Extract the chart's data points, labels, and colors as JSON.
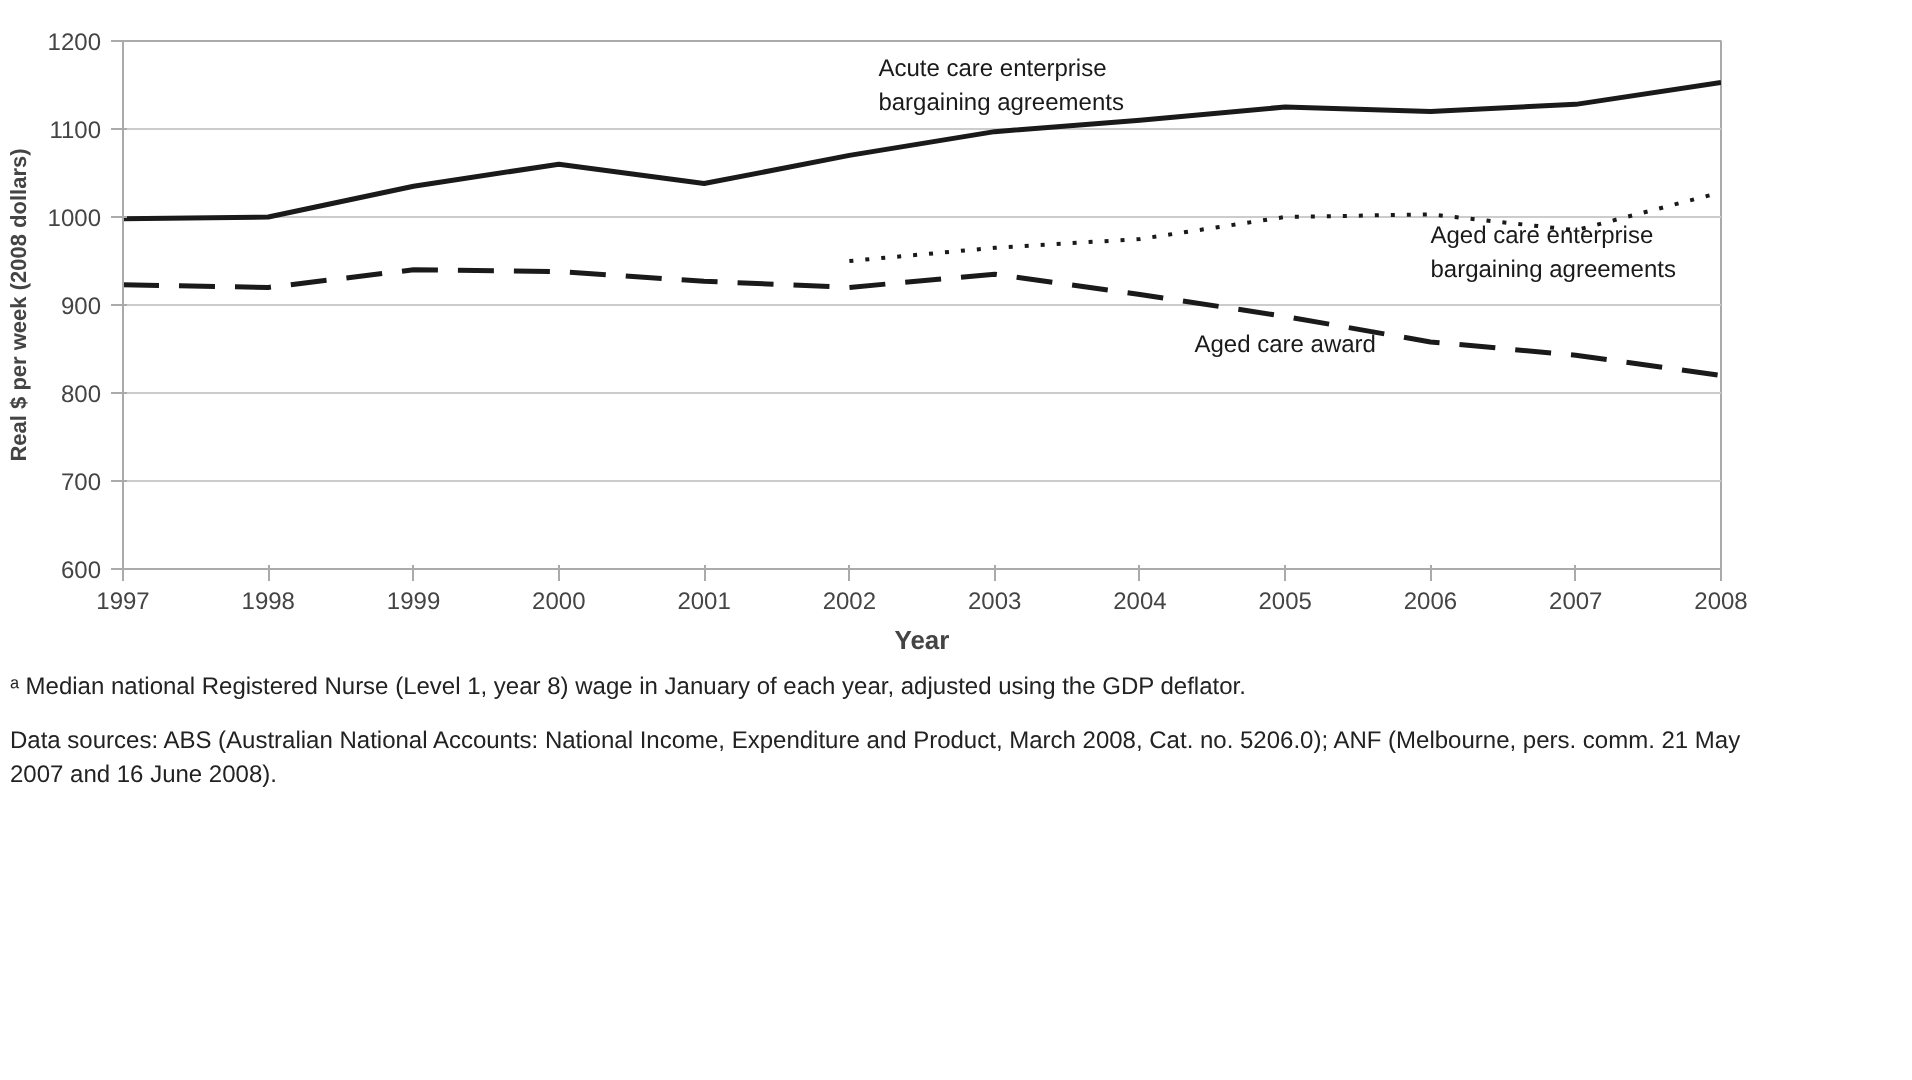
{
  "chart_data": {
    "type": "line",
    "xlabel": "Year",
    "ylabel": "Real $ per week (2008 dollars)",
    "x": [
      1997,
      1998,
      1999,
      2000,
      2001,
      2002,
      2003,
      2004,
      2005,
      2006,
      2007,
      2008
    ],
    "series": [
      {
        "name": "Acute care enterprise bargaining agreements",
        "color": "#1a1a1a",
        "line_style": "solid",
        "values": [
          998,
          1000,
          1035,
          1060,
          1038,
          1070,
          1097,
          1110,
          1125,
          1120,
          1128,
          1153
        ]
      },
      {
        "name": "Aged care enterprise bargaining agreements",
        "color": "#1a1a1a",
        "line_style": "dotted",
        "values": [
          null,
          null,
          null,
          null,
          null,
          950,
          965,
          975,
          1000,
          1003,
          985,
          1028
        ]
      },
      {
        "name": "Aged care award",
        "color": "#1a1a1a",
        "line_style": "dashed",
        "values": [
          923,
          920,
          940,
          938,
          927,
          920,
          935,
          912,
          887,
          858,
          843,
          820
        ]
      }
    ],
    "xlim": [
      1997,
      2008
    ],
    "xticks": [
      1997,
      1998,
      1999,
      2000,
      2001,
      2002,
      2003,
      2004,
      2005,
      2006,
      2007,
      2008
    ],
    "ylim": [
      600,
      1200
    ],
    "yticks": [
      600,
      700,
      800,
      900,
      1000,
      1100,
      1200
    ],
    "grid": "y",
    "legend": false,
    "annotations": [
      "ᵃ Median national Registered Nurse (Level 1, year 8) wage in January of each year, adjusted using the GDP deflator.",
      "Data sources: ABS (Australian National Accounts: National Income, Expenditure and Product, March 2008, Cat. no. 5206.0); ANF (Melbourne, pers. comm. 21 May 2007 and 16 June 2008)."
    ]
  }
}
